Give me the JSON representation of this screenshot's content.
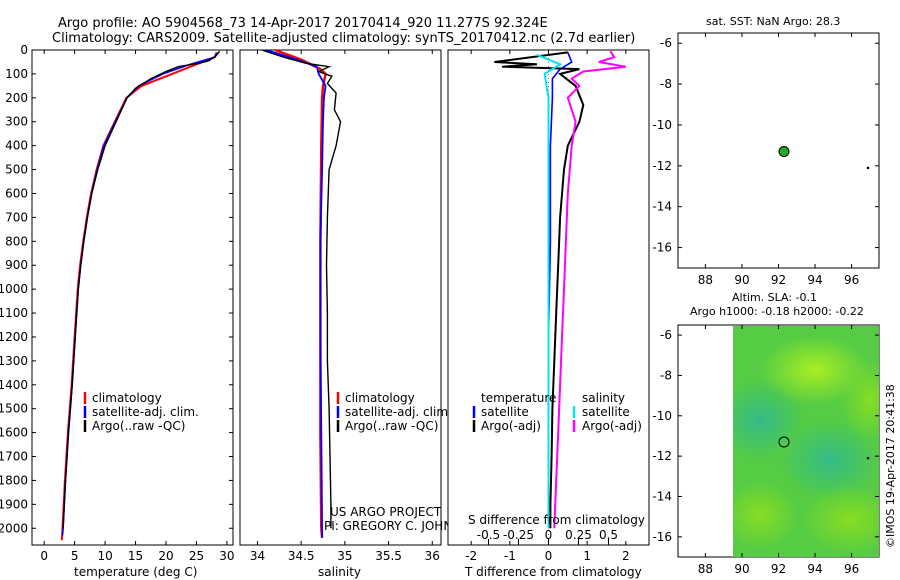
{
  "header": {
    "line1": "Argo profile: AO 5904568_73 14-Apr-2017 20170414_920 11.277S 92.324E",
    "line2": "Climatology: CARS2009. Satellite-adjusted climatology: synTS_20170412.nc (2.7d earlier)"
  },
  "watermark": "©IMOS 19-Apr-2017 20:41:38",
  "project_credit": {
    "line1": "US ARGO PROJECT",
    "line2": "PI: GREGORY C. JOHNSON"
  },
  "colors": {
    "climatology": "#ff0000",
    "satellite": "#0000ff",
    "argo": "#000000",
    "sal_satellite": "#00e5ee",
    "sal_argo": "#ff00ff"
  },
  "chart_data": [
    {
      "type": "line",
      "panel": "temperature",
      "xlabel": "temperature (deg C)",
      "xlim": [
        -2,
        31
      ],
      "xticks": [
        0,
        5,
        10,
        15,
        20,
        25,
        30
      ],
      "ylim": [
        2070,
        0
      ],
      "yticks": [
        0,
        100,
        200,
        300,
        400,
        500,
        600,
        700,
        800,
        900,
        1000,
        1100,
        1200,
        1300,
        1400,
        1500,
        1600,
        1700,
        1800,
        1900,
        2000
      ],
      "legend": [
        "climatology",
        "satellite-adj. clim.",
        "Argo(..raw -QC)"
      ],
      "series": [
        {
          "name": "climatology",
          "color": "#ff0000",
          "points": [
            [
              28.3,
              10
            ],
            [
              28.0,
              30
            ],
            [
              25.0,
              60
            ],
            [
              21.0,
              100
            ],
            [
              16.0,
              150
            ],
            [
              13.5,
              200
            ],
            [
              11.6,
              300
            ],
            [
              9.7,
              400
            ],
            [
              8.6,
              500
            ],
            [
              7.7,
              600
            ],
            [
              7.0,
              700
            ],
            [
              6.4,
              800
            ],
            [
              5.9,
              900
            ],
            [
              5.5,
              1000
            ],
            [
              5.0,
              1200
            ],
            [
              4.5,
              1400
            ],
            [
              3.9,
              1600
            ],
            [
              3.4,
              1800
            ],
            [
              3.0,
              2000
            ],
            [
              2.9,
              2050
            ]
          ]
        },
        {
          "name": "satellite-adj. clim.",
          "color": "#0000ff",
          "points": [
            [
              28.5,
              10
            ],
            [
              28.0,
              30
            ],
            [
              24.0,
              60
            ],
            [
              19.5,
              100
            ],
            [
              15.5,
              150
            ],
            [
              13.6,
              200
            ],
            [
              11.7,
              300
            ],
            [
              9.8,
              400
            ],
            [
              8.7,
              500
            ],
            [
              7.8,
              600
            ],
            [
              7.1,
              700
            ],
            [
              6.5,
              800
            ],
            [
              6.0,
              900
            ],
            [
              5.6,
              1000
            ],
            [
              5.1,
              1200
            ],
            [
              4.6,
              1400
            ],
            [
              4.0,
              1600
            ],
            [
              3.5,
              1800
            ],
            [
              3.1,
              2000
            ],
            [
              3.0,
              2030
            ]
          ]
        },
        {
          "name": "Argo(..raw -QC)",
          "color": "#000000",
          "points": [
            [
              28.8,
              5
            ],
            [
              28.2,
              25
            ],
            [
              27.0,
              45
            ],
            [
              25.5,
              55
            ],
            [
              22.0,
              70
            ],
            [
              20.0,
              90
            ],
            [
              17.5,
              120
            ],
            [
              15.0,
              160
            ],
            [
              13.6,
              200
            ],
            [
              11.8,
              300
            ],
            [
              10.0,
              400
            ],
            [
              8.8,
              500
            ],
            [
              7.8,
              600
            ],
            [
              7.1,
              700
            ],
            [
              6.5,
              800
            ],
            [
              6.0,
              900
            ],
            [
              5.6,
              1000
            ],
            [
              5.1,
              1200
            ],
            [
              4.6,
              1400
            ],
            [
              4.0,
              1600
            ],
            [
              3.5,
              1800
            ],
            [
              3.1,
              2000
            ]
          ]
        }
      ]
    },
    {
      "type": "line",
      "panel": "salinity",
      "xlabel": "salinity",
      "xlim": [
        33.8,
        36.1
      ],
      "xticks": [
        34,
        34.5,
        35,
        35.5,
        36
      ],
      "xtick_labels": [
        "34",
        "34.5",
        "35",
        "35.5",
        "36"
      ],
      "ylim": [
        2070,
        0
      ],
      "legend": [
        "climatology",
        "satellite-adj. clim.",
        "Argo(..raw -QC)"
      ],
      "series": [
        {
          "name": "climatology",
          "color": "#ff0000",
          "points": [
            [
              34.2,
              0
            ],
            [
              34.5,
              40
            ],
            [
              34.72,
              80
            ],
            [
              34.78,
              100
            ],
            [
              34.75,
              150
            ],
            [
              34.74,
              200
            ],
            [
              34.73,
              400
            ],
            [
              34.72,
              800
            ],
            [
              34.72,
              1200
            ],
            [
              34.72,
              1600
            ],
            [
              34.73,
              2000
            ],
            [
              34.74,
              2040
            ]
          ]
        },
        {
          "name": "satellite-adj. clim.",
          "color": "#0000ff",
          "points": [
            [
              34.1,
              0
            ],
            [
              34.45,
              40
            ],
            [
              34.68,
              70
            ],
            [
              34.7,
              100
            ],
            [
              34.78,
              150
            ],
            [
              34.76,
              200
            ],
            [
              34.75,
              300
            ],
            [
              34.74,
              500
            ],
            [
              34.72,
              800
            ],
            [
              34.72,
              1200
            ],
            [
              34.73,
              1600
            ],
            [
              34.74,
              2000
            ],
            [
              34.74,
              2040
            ]
          ]
        },
        {
          "name": "Argo(..raw -QC)",
          "color": "#000000",
          "points": [
            [
              34.05,
              0
            ],
            [
              34.3,
              30
            ],
            [
              34.55,
              55
            ],
            [
              34.82,
              70
            ],
            [
              34.7,
              90
            ],
            [
              34.85,
              110
            ],
            [
              34.8,
              140
            ],
            [
              34.9,
              180
            ],
            [
              34.88,
              250
            ],
            [
              34.95,
              300
            ],
            [
              34.9,
              400
            ],
            [
              34.82,
              500
            ],
            [
              34.8,
              700
            ],
            [
              34.79,
              900
            ],
            [
              34.8,
              1100
            ],
            [
              34.8,
              1300
            ],
            [
              34.82,
              1500
            ],
            [
              34.83,
              1700
            ],
            [
              34.84,
              1900
            ],
            [
              34.84,
              2000
            ]
          ]
        }
      ]
    },
    {
      "type": "line",
      "panel": "difference",
      "xlabel": "T difference from climatology",
      "xlabel2": "S difference from climatology",
      "xlim": [
        -2.6,
        2.6
      ],
      "xticks": [
        -2,
        -1,
        0,
        1,
        2
      ],
      "xtick_labels": [
        "-2",
        "-1",
        "0",
        "1",
        "2"
      ],
      "xticks2": [
        -0.5,
        -0.25,
        0,
        0.25,
        0.5
      ],
      "xtick_labels2": [
        "-0.5",
        "-0.25",
        "0",
        "0.25",
        "0.5"
      ],
      "ylim": [
        2070,
        0
      ],
      "legend_temperature": [
        "temperature",
        "satellite",
        "Argo(-adj)"
      ],
      "legend_salinity": [
        "salinity",
        "satellite",
        "Argo(-adj)"
      ],
      "series": [
        {
          "name": "satellite",
          "color": "#0000ff",
          "points": [
            [
              0.5,
              10
            ],
            [
              0.6,
              50
            ],
            [
              0.3,
              80
            ],
            [
              0.1,
              120
            ],
            [
              0.1,
              200
            ],
            [
              0.05,
              400
            ],
            [
              0.05,
              800
            ],
            [
              0.0,
              1200
            ],
            [
              0.0,
              1600
            ],
            [
              0.0,
              2000
            ]
          ]
        },
        {
          "name": "Argo(-adj)",
          "color": "#000000",
          "points": [
            [
              0.5,
              10
            ],
            [
              -1.4,
              50
            ],
            [
              -0.3,
              60
            ],
            [
              -1.2,
              70
            ],
            [
              0.8,
              80
            ],
            [
              0.3,
              100
            ],
            [
              0.7,
              150
            ],
            [
              0.9,
              230
            ],
            [
              0.8,
              300
            ],
            [
              0.5,
              400
            ],
            [
              0.4,
              500
            ],
            [
              0.3,
              700
            ],
            [
              0.25,
              900
            ],
            [
              0.2,
              1100
            ],
            [
              0.15,
              1300
            ],
            [
              0.1,
              1500
            ],
            [
              0.08,
              1700
            ],
            [
              0.05,
              1900
            ],
            [
              0.05,
              2000
            ]
          ]
        },
        {
          "name": "satellite",
          "color": "#00e5ee",
          "points": [
            [
              -0.3,
              20
            ],
            [
              0.3,
              60
            ],
            [
              -0.1,
              100
            ],
            [
              0.0,
              200
            ],
            [
              0.0,
              400
            ],
            [
              0.0,
              800
            ],
            [
              0.0,
              1200
            ],
            [
              0.0,
              1600
            ],
            [
              0.0,
              2000
            ]
          ]
        },
        {
          "name": "Argo(-adj)",
          "color": "#ff00ff",
          "points": [
            [
              1.6,
              5
            ],
            [
              1.7,
              30
            ],
            [
              1.3,
              50
            ],
            [
              2.0,
              70
            ],
            [
              0.9,
              90
            ],
            [
              0.6,
              120
            ],
            [
              0.8,
              150
            ],
            [
              0.5,
              200
            ],
            [
              0.7,
              300
            ],
            [
              0.6,
              400
            ],
            [
              0.55,
              500
            ],
            [
              0.5,
              600
            ],
            [
              0.45,
              800
            ],
            [
              0.4,
              1000
            ],
            [
              0.35,
              1200
            ],
            [
              0.3,
              1400
            ],
            [
              0.25,
              1600
            ],
            [
              0.2,
              1800
            ],
            [
              0.15,
              2000
            ]
          ]
        }
      ]
    },
    {
      "type": "scatter",
      "panel": "sst_map",
      "title": "sat. SST: NaN Argo: 28.3",
      "xlim": [
        86.5,
        97.5
      ],
      "ylim": [
        -17,
        -5.5
      ],
      "xticks": [
        88,
        90,
        92,
        94,
        96
      ],
      "yticks": [
        -6,
        -8,
        -10,
        -12,
        -14,
        -16
      ],
      "points": [
        {
          "lon": 92.3,
          "lat": -11.3,
          "color": "#22aa22"
        },
        {
          "lon": 96.9,
          "lat": -12.1,
          "color": "#000000"
        }
      ]
    },
    {
      "type": "heatmap",
      "panel": "sla_map",
      "title": "Altim. SLA: -0.1",
      "subtitle": "Argo h1000: -0.18 h2000: -0.22",
      "xlim": [
        86.5,
        97.5
      ],
      "ylim": [
        -17,
        -5.5
      ],
      "xticks": [
        88,
        90,
        92,
        94,
        96
      ],
      "yticks": [
        -6,
        -8,
        -10,
        -12,
        -14,
        -16
      ],
      "field_extent_lon": [
        90,
        97.5
      ],
      "points": [
        {
          "lon": 92.3,
          "lat": -11.3,
          "color": "#000000"
        },
        {
          "lon": 96.9,
          "lat": -12.1,
          "color": "#000000"
        }
      ]
    }
  ]
}
